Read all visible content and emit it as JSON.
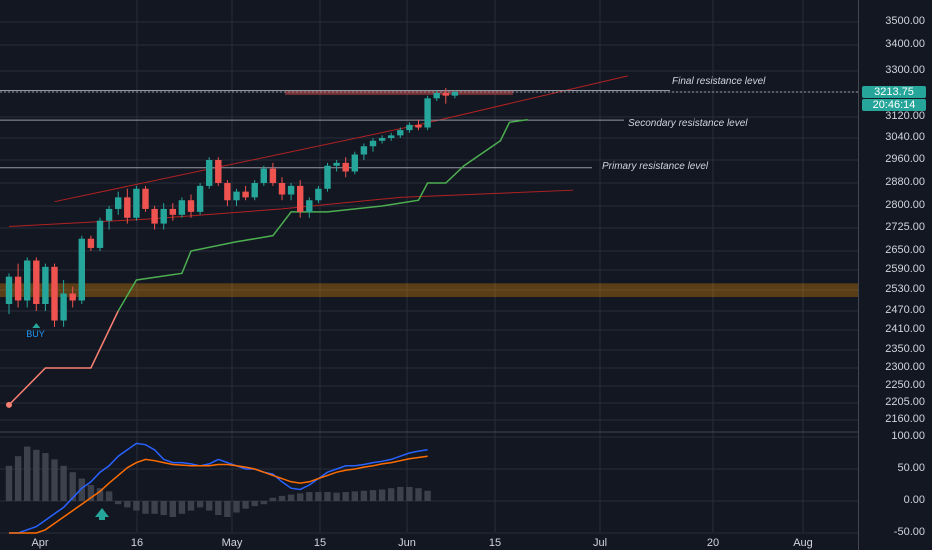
{
  "colors": {
    "background": "#131722",
    "grid": "#2a2e39",
    "bull": "#26a69a",
    "bear": "#ef5350",
    "baseline_red": "#fa8072",
    "baseline_green": "#4caf50",
    "channel": "#b22222",
    "resistance_line": "#9598a1",
    "support_zone": "#ff9800",
    "macd_line": "#2962ff",
    "signal_line": "#ff6d00",
    "histogram": "#434651"
  },
  "price_axis": {
    "ticks": [
      "3500.00",
      "3400.00",
      "3300.00",
      "3213.75",
      "3120.00",
      "3040.00",
      "2960.00",
      "2880.00",
      "2800.00",
      "2725.00",
      "2650.00",
      "2590.00",
      "2530.00",
      "2470.00",
      "2410.00",
      "2350.00",
      "2300.00",
      "2250.00",
      "2205.00",
      "2160.00"
    ],
    "current_price": "3213.75",
    "countdown": "20:46:14"
  },
  "oscillator_axis": {
    "ticks": [
      "100.00",
      "50.00",
      "0.00",
      "-50.00"
    ]
  },
  "date_axis": {
    "labels": [
      "Apr",
      "16",
      "May",
      "15",
      "Jun",
      "15",
      "Jul",
      "20",
      "Aug"
    ]
  },
  "annotations": {
    "final_resistance": "Final resistance level",
    "secondary_resistance": "Secondary resistance level",
    "primary_resistance": "Primary resistance level",
    "buy_signal": "BUY"
  },
  "chart_data": {
    "type": "candlestick",
    "interval": "1 day",
    "x_start": "2021-03-27",
    "candles": [
      [
        2490,
        2580,
        2460,
        2570
      ],
      [
        2570,
        2610,
        2480,
        2500
      ],
      [
        2500,
        2630,
        2480,
        2620
      ],
      [
        2620,
        2630,
        2470,
        2490
      ],
      [
        2490,
        2610,
        2470,
        2600
      ],
      [
        2600,
        2610,
        2420,
        2440
      ],
      [
        2440,
        2560,
        2420,
        2520
      ],
      [
        2520,
        2540,
        2480,
        2500
      ],
      [
        2500,
        2700,
        2490,
        2690
      ],
      [
        2690,
        2700,
        2650,
        2660
      ],
      [
        2660,
        2760,
        2650,
        2750
      ],
      [
        2750,
        2800,
        2720,
        2790
      ],
      [
        2790,
        2850,
        2770,
        2830
      ],
      [
        2830,
        2860,
        2740,
        2760
      ],
      [
        2760,
        2870,
        2750,
        2860
      ],
      [
        2860,
        2870,
        2780,
        2790
      ],
      [
        2790,
        2800,
        2720,
        2740
      ],
      [
        2740,
        2810,
        2720,
        2790
      ],
      [
        2790,
        2810,
        2750,
        2770
      ],
      [
        2770,
        2830,
        2760,
        2820
      ],
      [
        2820,
        2840,
        2760,
        2780
      ],
      [
        2780,
        2880,
        2770,
        2870
      ],
      [
        2870,
        2970,
        2860,
        2960
      ],
      [
        2960,
        2970,
        2870,
        2880
      ],
      [
        2880,
        2890,
        2800,
        2820
      ],
      [
        2820,
        2860,
        2800,
        2850
      ],
      [
        2850,
        2870,
        2820,
        2830
      ],
      [
        2830,
        2890,
        2820,
        2880
      ],
      [
        2880,
        2940,
        2870,
        2930
      ],
      [
        2930,
        2950,
        2870,
        2880
      ],
      [
        2880,
        2900,
        2820,
        2840
      ],
      [
        2840,
        2880,
        2820,
        2870
      ],
      [
        2870,
        2890,
        2760,
        2780
      ],
      [
        2780,
        2830,
        2760,
        2820
      ],
      [
        2820,
        2870,
        2810,
        2860
      ],
      [
        2860,
        2950,
        2850,
        2940
      ],
      [
        2940,
        2960,
        2920,
        2950
      ],
      [
        2950,
        2970,
        2900,
        2920
      ],
      [
        2920,
        2990,
        2910,
        2980
      ],
      [
        2980,
        3020,
        2960,
        3010
      ],
      [
        3010,
        3040,
        2990,
        3030
      ],
      [
        3030,
        3050,
        3020,
        3040
      ],
      [
        3040,
        3060,
        3030,
        3050
      ],
      [
        3050,
        3080,
        3040,
        3070
      ],
      [
        3070,
        3100,
        3060,
        3090
      ],
      [
        3090,
        3110,
        3070,
        3080
      ],
      [
        3080,
        3200,
        3070,
        3190
      ],
      [
        3190,
        3220,
        3180,
        3210
      ],
      [
        3210,
        3230,
        3170,
        3200
      ],
      [
        3200,
        3220,
        3190,
        3213.75
      ]
    ],
    "baseline": [
      [
        0,
        2200
      ],
      [
        4,
        2300
      ],
      [
        9,
        2300
      ],
      [
        12,
        2470
      ],
      [
        14,
        2560
      ],
      [
        19,
        2580
      ],
      [
        20,
        2650
      ],
      [
        25,
        2680
      ],
      [
        29,
        2700
      ],
      [
        31,
        2780
      ],
      [
        35,
        2780
      ],
      [
        41,
        2800
      ],
      [
        43,
        2810
      ],
      [
        45,
        2820
      ],
      [
        46,
        2880
      ],
      [
        48,
        2880
      ],
      [
        50,
        2940
      ],
      [
        54,
        3030
      ],
      [
        55,
        3100
      ],
      [
        57,
        3110
      ]
    ],
    "baseline_flip_index": 12,
    "lower_line": [
      [
        0,
        2730
      ],
      [
        15,
        2755
      ],
      [
        30,
        2790
      ],
      [
        43,
        2830
      ],
      [
        62,
        2855
      ]
    ],
    "channel_top": [
      [
        5,
        2815
      ],
      [
        45,
        3090
      ],
      [
        68,
        3280
      ]
    ],
    "primary_resistance_price": 2933,
    "secondary_resistance_price": 3108,
    "final_resistance_price": 3220,
    "resistance_zone": [
      3203,
      3220
    ],
    "support_zone": [
      2510,
      2550
    ],
    "buy_marker_index": 3,
    "oscillator": {
      "macd": [
        -60,
        -55,
        -45,
        -40,
        -30,
        -20,
        -10,
        5,
        20,
        30,
        45,
        55,
        70,
        80,
        90,
        88,
        80,
        65,
        60,
        60,
        58,
        55,
        58,
        65,
        60,
        55,
        50,
        50,
        45,
        42,
        30,
        20,
        18,
        25,
        35,
        45,
        50,
        55,
        55,
        57,
        60,
        62,
        65,
        70,
        75,
        78,
        80
      ],
      "signal": [
        -70,
        -65,
        -60,
        -55,
        -45,
        -35,
        -25,
        -15,
        -5,
        5,
        15,
        28,
        40,
        52,
        60,
        65,
        63,
        60,
        57,
        56,
        55,
        55,
        55,
        57,
        57,
        55,
        53,
        50,
        45,
        40,
        35,
        30,
        28,
        30,
        35,
        40,
        45,
        48,
        50,
        53,
        55,
        58,
        60,
        63,
        66,
        68,
        70
      ],
      "histogram": [
        55,
        70,
        85,
        80,
        75,
        65,
        55,
        45,
        35,
        25,
        20,
        15,
        -5,
        -10,
        -15,
        -20,
        -20,
        -22,
        -25,
        -20,
        -15,
        -10,
        -15,
        -22,
        -25,
        -18,
        -12,
        -8,
        -5,
        5,
        8,
        10,
        12,
        14,
        14,
        14,
        13,
        14,
        15,
        16,
        17,
        18,
        20,
        22,
        22,
        20,
        16
      ]
    }
  }
}
